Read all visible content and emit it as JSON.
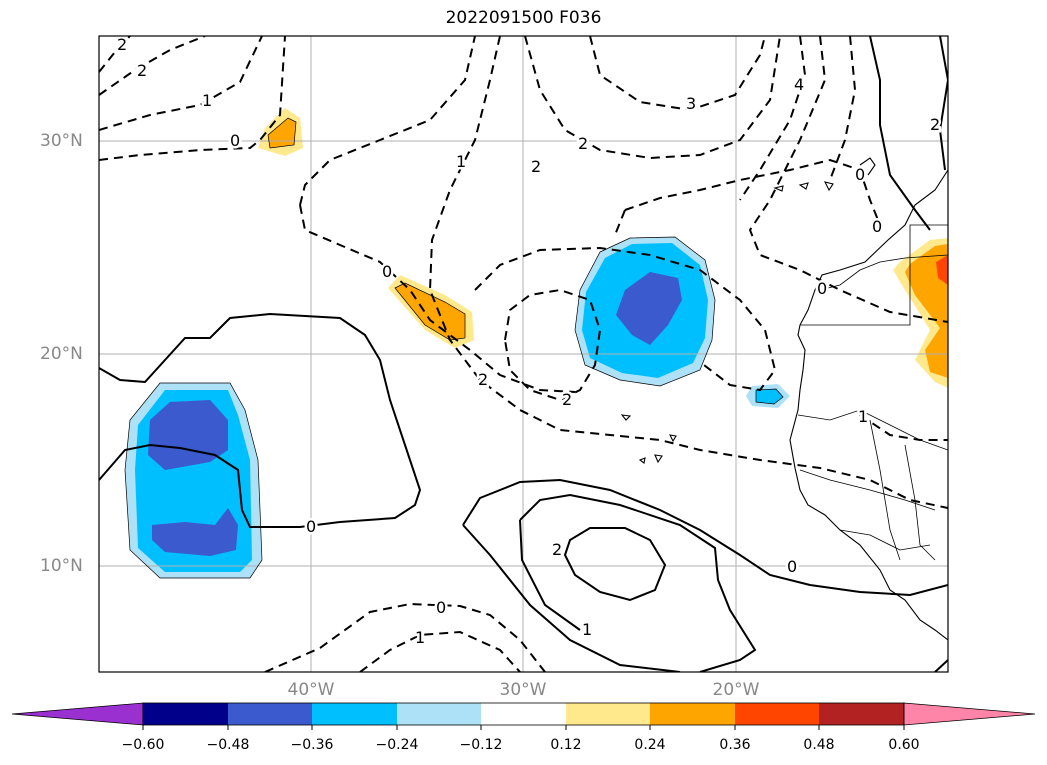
{
  "title": "2022091500 F036",
  "lat_labels": [
    "30°N",
    "20°N",
    "10°N"
  ],
  "lon_labels": [
    "40°W",
    "30°W",
    "20°W"
  ],
  "colorbar": {
    "ticks": [
      "−0.60",
      "−0.48",
      "−0.36",
      "−0.24",
      "−0.12",
      "0.12",
      "0.24",
      "0.36",
      "0.48",
      "0.60"
    ],
    "colors": [
      "#9b30d0",
      "#00008b",
      "#3a5acd",
      "#00bfff",
      "#ade1f8",
      "#ffffff",
      "#ffe98c",
      "#ffa500",
      "#ff4500",
      "#b22222",
      "#ff85a8"
    ],
    "extend": "both"
  },
  "contour_labels": [
    "2",
    "2",
    "1",
    "0",
    "1",
    "2",
    "2",
    "3",
    "4",
    "0",
    "0",
    "2",
    "2",
    "0",
    "0",
    "2",
    "0",
    "0",
    "0",
    "1",
    "2",
    "1",
    "1"
  ],
  "colors": {
    "negative_strong": "#3a5acd",
    "negative_mid": "#00bfff",
    "negative_weak": "#ade1f8",
    "positive_weak": "#ffe98c",
    "positive_mid": "#ffa500",
    "positive_strong": "#ff4500"
  }
}
